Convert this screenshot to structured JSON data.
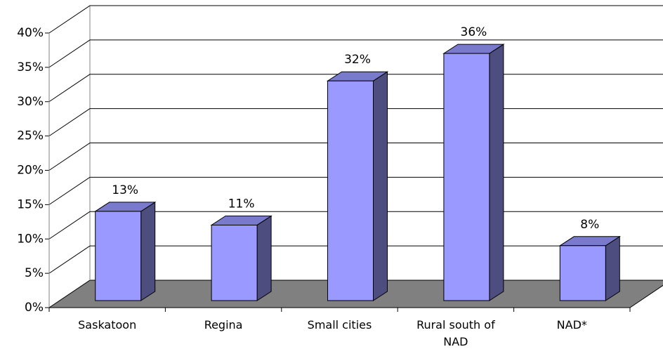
{
  "chart_data": {
    "type": "bar3d",
    "categories": [
      "Saskatoon",
      "Regina",
      "Small cities",
      "Rural south of NAD",
      "NAD*"
    ],
    "values": [
      13,
      11,
      32,
      36,
      8
    ],
    "value_labels": [
      "13%",
      "11%",
      "32%",
      "36%",
      "8%"
    ],
    "color": "#9999ff",
    "ylim": [
      0,
      40
    ],
    "yticks": [
      {
        "value": 0,
        "label": "0%"
      },
      {
        "value": 5,
        "label": "5%"
      },
      {
        "value": 10,
        "label": "10%"
      },
      {
        "value": 15,
        "label": "15%"
      },
      {
        "value": 20,
        "label": "20%"
      },
      {
        "value": 25,
        "label": "25%"
      },
      {
        "value": 30,
        "label": "30%"
      },
      {
        "value": 35,
        "label": "35%"
      },
      {
        "value": 40,
        "label": "40%"
      }
    ],
    "grid": true
  }
}
